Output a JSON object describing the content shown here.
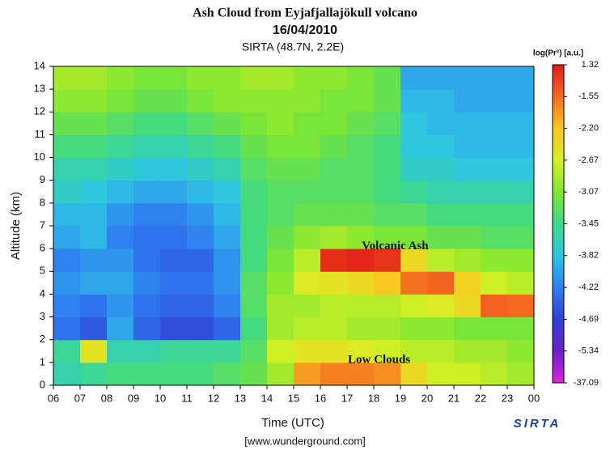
{
  "chart_data": {
    "type": "heatmap",
    "title": "Ash Cloud from Eyjafjallajökull volcano",
    "subtitle": "16/04/2010",
    "site": "SIRTA (48.7N, 2.2E)",
    "x_label": "Time (UTC)",
    "y_label": "Altitude (km)",
    "source": "[www.wunderground.com]",
    "logo": "SIRTA",
    "annotations": [
      {
        "text": "Volcanic Ash",
        "x": 18.8,
        "y": 6.1
      },
      {
        "text": "Low Clouds",
        "x": 18.2,
        "y": 1.1
      }
    ],
    "xlim": [
      6,
      24
    ],
    "ylim": [
      0,
      14
    ],
    "xticks": [
      {
        "value": 6,
        "label": "06"
      },
      {
        "value": 7,
        "label": "07"
      },
      {
        "value": 8,
        "label": "08"
      },
      {
        "value": 9,
        "label": "09"
      },
      10,
      11,
      12,
      13,
      14,
      15,
      16,
      17,
      18,
      19,
      20,
      21,
      22,
      23,
      {
        "value": 24,
        "label": "00"
      }
    ],
    "yticks": [
      0,
      1,
      2,
      3,
      4,
      5,
      6,
      7,
      8,
      9,
      10,
      11,
      12,
      13,
      14
    ],
    "x": [
      6,
      7,
      8,
      9,
      10,
      11,
      12,
      13,
      14,
      15,
      16,
      17,
      18,
      19,
      20,
      21,
      22,
      23
    ],
    "y": [
      0,
      1,
      2,
      3,
      4,
      5,
      6,
      7,
      8,
      9,
      10,
      11,
      12,
      13
    ],
    "z": [
      [
        -3.6,
        -3.5,
        -3.4,
        -3.4,
        -3.4,
        -3.4,
        -3.3,
        -3.2,
        -2.9,
        -1.9,
        -1.7,
        -1.7,
        -1.8,
        -2.4,
        -2.7,
        -2.7,
        -2.8,
        -2.9
      ],
      [
        -3.5,
        -2.5,
        -3.6,
        -3.6,
        -3.5,
        -3.5,
        -3.5,
        -3.3,
        -2.7,
        -2.5,
        -2.5,
        -2.6,
        -2.7,
        -2.8,
        -2.8,
        -2.9,
        -2.9,
        -3.0
      ],
      [
        -4.3,
        -4.5,
        -4.0,
        -4.4,
        -4.6,
        -4.6,
        -4.4,
        -3.4,
        -2.9,
        -2.8,
        -2.8,
        -2.9,
        -2.9,
        -3.0,
        -3.0,
        -3.1,
        -3.1,
        -3.1
      ],
      [
        -4.2,
        -4.3,
        -4.1,
        -4.3,
        -4.4,
        -4.4,
        -4.2,
        -3.3,
        -2.9,
        -2.9,
        -2.8,
        -2.8,
        -2.8,
        -2.7,
        -2.6,
        -2.4,
        -1.2,
        -1.5
      ],
      [
        -4.1,
        -4.0,
        -4.0,
        -4.2,
        -4.3,
        -4.3,
        -4.1,
        -3.3,
        -3.0,
        -2.6,
        -2.5,
        -2.4,
        -2.2,
        -1.6,
        -1.3,
        -2.3,
        -2.7,
        -2.8
      ],
      [
        -4.2,
        -4.1,
        -4.1,
        -4.3,
        -4.4,
        -4.4,
        -4.1,
        -3.4,
        -3.1,
        -2.8,
        0.6,
        0.9,
        0.4,
        -2.4,
        -2.8,
        -2.9,
        -3.0,
        -3.0
      ],
      [
        -4.0,
        -3.9,
        -4.2,
        -4.3,
        -4.3,
        -4.2,
        -4.0,
        -3.4,
        -3.2,
        -3.0,
        -2.9,
        -3.0,
        -3.1,
        -3.1,
        -3.2,
        -3.2,
        -3.3,
        -3.3
      ],
      [
        -3.9,
        -3.9,
        -4.1,
        -4.2,
        -4.2,
        -4.1,
        -3.9,
        -3.4,
        -3.3,
        -3.2,
        -3.2,
        -3.2,
        -3.3,
        -3.3,
        -3.4,
        -3.4,
        -3.4,
        -3.4
      ],
      [
        -3.7,
        -3.8,
        -3.9,
        -4.0,
        -4.0,
        -3.9,
        -3.8,
        -3.4,
        -3.3,
        -3.3,
        -3.3,
        -3.3,
        -3.4,
        -3.5,
        -3.6,
        -3.6,
        -3.6,
        -3.6
      ],
      [
        -3.6,
        -3.6,
        -3.7,
        -3.8,
        -3.8,
        -3.7,
        -3.6,
        -3.3,
        -3.2,
        -3.2,
        -3.3,
        -3.3,
        -3.4,
        -3.7,
        -3.7,
        -3.8,
        -3.8,
        -3.8
      ],
      [
        -3.4,
        -3.4,
        -3.5,
        -3.6,
        -3.6,
        -3.5,
        -3.4,
        -3.2,
        -3.1,
        -3.1,
        -3.2,
        -3.3,
        -3.4,
        -3.8,
        -3.8,
        -3.9,
        -3.9,
        -3.9
      ],
      [
        -3.2,
        -3.2,
        -3.3,
        -3.4,
        -3.4,
        -3.3,
        -3.2,
        -3.1,
        -3.0,
        -3.1,
        -3.1,
        -3.2,
        -3.3,
        -3.8,
        -3.9,
        -3.9,
        -3.9,
        -3.9
      ],
      [
        -3.0,
        -3.0,
        -3.1,
        -3.2,
        -3.2,
        -3.1,
        -3.0,
        -3.0,
        -3.0,
        -3.0,
        -3.1,
        -3.1,
        -3.2,
        -3.9,
        -3.9,
        -4.0,
        -4.0,
        -4.0
      ],
      [
        -2.9,
        -2.9,
        -3.0,
        -3.1,
        -3.1,
        -3.0,
        -3.0,
        -2.9,
        -2.9,
        -3.0,
        -3.0,
        -3.1,
        -3.2,
        -4.0,
        -4.0,
        -4.0,
        -4.0,
        -4.0
      ]
    ],
    "colorbar": {
      "label": "log(Pr²) [a.u.]",
      "ticks": [
        1.32,
        -1.55,
        {
          "value": -2.2,
          "label": "-2.20"
        },
        -2.67,
        -3.07,
        -3.45,
        -3.82,
        -4.22,
        -4.69,
        -5.34,
        -37.09
      ],
      "colors": [
        "#e01a18",
        "#f46a20",
        "#fac822",
        "#d6f024",
        "#7ee632",
        "#3ed88a",
        "#2ec6e2",
        "#2e7ef0",
        "#3040d6",
        "#6a20c8",
        "#e020e0"
      ]
    }
  }
}
